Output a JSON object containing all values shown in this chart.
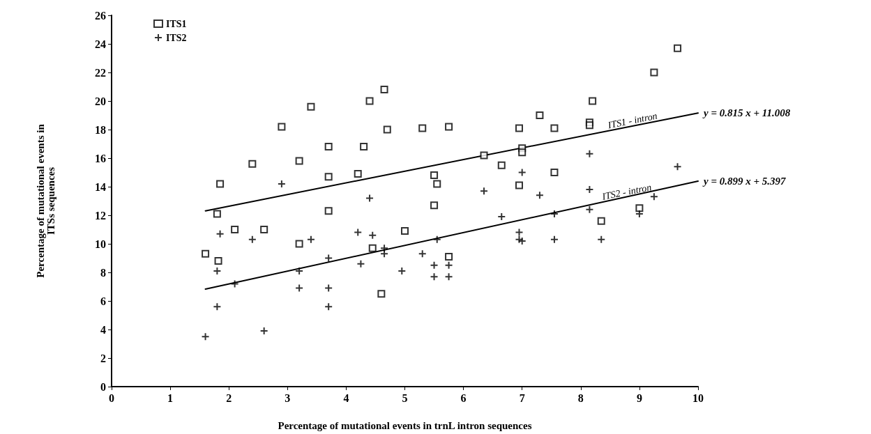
{
  "chart_data": {
    "type": "scatter",
    "xlabel": "Percentage of mutational events in trnL intron sequences",
    "ylabel": "Percentage of mutational events in\nITSs sequences",
    "xlim": [
      0,
      10
    ],
    "xticks": [
      0,
      1,
      2,
      3,
      4,
      5,
      6,
      7,
      8,
      9,
      10
    ],
    "ylim": [
      0,
      26
    ],
    "yticks": [
      0,
      2,
      4,
      6,
      8,
      10,
      12,
      14,
      16,
      18,
      20,
      22,
      24,
      26
    ],
    "grid": false,
    "legend": "top left",
    "series": [
      {
        "name": "ITS1",
        "color": "#000000",
        "marker": "square",
        "x": [
          1.6,
          1.8,
          1.82,
          1.85,
          2.1,
          2.4,
          2.6,
          2.9,
          3.2,
          3.2,
          3.4,
          3.7,
          3.7,
          3.7,
          4.2,
          4.3,
          4.4,
          4.45,
          4.6,
          4.65,
          4.7,
          5.0,
          5.3,
          5.5,
          5.5,
          5.55,
          5.75,
          5.75,
          6.35,
          6.65,
          6.95,
          6.95,
          7.0,
          7.0,
          7.3,
          7.55,
          7.55,
          8.15,
          8.15,
          8.2,
          8.35,
          9.0,
          9.25,
          9.65
        ],
        "values": [
          9.3,
          12.1,
          8.8,
          14.2,
          11.0,
          15.6,
          11.0,
          18.2,
          15.8,
          10.0,
          19.6,
          16.8,
          14.7,
          12.3,
          14.9,
          16.8,
          20.0,
          9.7,
          6.5,
          20.8,
          18.0,
          10.9,
          18.1,
          14.8,
          12.7,
          14.2,
          18.2,
          9.1,
          16.2,
          15.5,
          18.1,
          14.1,
          16.7,
          16.4,
          19.0,
          18.1,
          15.0,
          18.5,
          18.3,
          20.0,
          11.6,
          12.5,
          22.0,
          23.7
        ]
      },
      {
        "name": "ITS2",
        "color": "#000000",
        "marker": "cross",
        "x": [
          1.6,
          1.8,
          1.8,
          1.85,
          2.1,
          2.4,
          2.6,
          2.9,
          3.2,
          3.2,
          3.4,
          3.7,
          3.7,
          3.7,
          4.2,
          4.25,
          4.4,
          4.45,
          4.65,
          4.65,
          4.95,
          5.3,
          5.5,
          5.5,
          5.55,
          5.75,
          5.75,
          6.35,
          6.65,
          6.95,
          6.95,
          7.0,
          7.0,
          7.3,
          7.55,
          7.55,
          8.15,
          8.15,
          8.15,
          8.35,
          9.0,
          9.25,
          9.65
        ],
        "values": [
          3.5,
          5.6,
          8.1,
          10.7,
          7.2,
          10.3,
          3.9,
          14.2,
          8.1,
          6.9,
          10.3,
          9.0,
          6.9,
          5.6,
          10.8,
          8.6,
          13.2,
          10.6,
          9.7,
          9.3,
          8.1,
          9.3,
          8.5,
          7.7,
          10.3,
          8.5,
          7.7,
          13.7,
          11.9,
          10.8,
          10.3,
          15.0,
          10.2,
          13.4,
          12.1,
          10.3,
          16.3,
          13.8,
          12.4,
          10.3,
          12.1,
          13.3,
          15.4
        ]
      },
      {
        "type": "line",
        "color": "#000000",
        "marker": "none",
        "line_style": "solid",
        "x": [
          1.6,
          10
        ],
        "values": [
          12.31,
          19.16
        ]
      },
      {
        "type": "line",
        "color": "#000000",
        "marker": "none",
        "line_style": "solid",
        "x": [
          1.6,
          10
        ],
        "values": [
          6.83,
          14.39
        ]
      }
    ],
    "annotations": [
      {
        "text": "ITS1 - intron",
        "x": 8.9,
        "y": 18.3
      },
      {
        "text": "y = 0.815 x + 11.008",
        "x": 10,
        "y": 19.16
      },
      {
        "text": "ITS2 - intron",
        "x": 8.8,
        "y": 13.3
      },
      {
        "text": "y = 0.899 x + 5.397",
        "x": 10,
        "y": 14.39
      }
    ]
  }
}
